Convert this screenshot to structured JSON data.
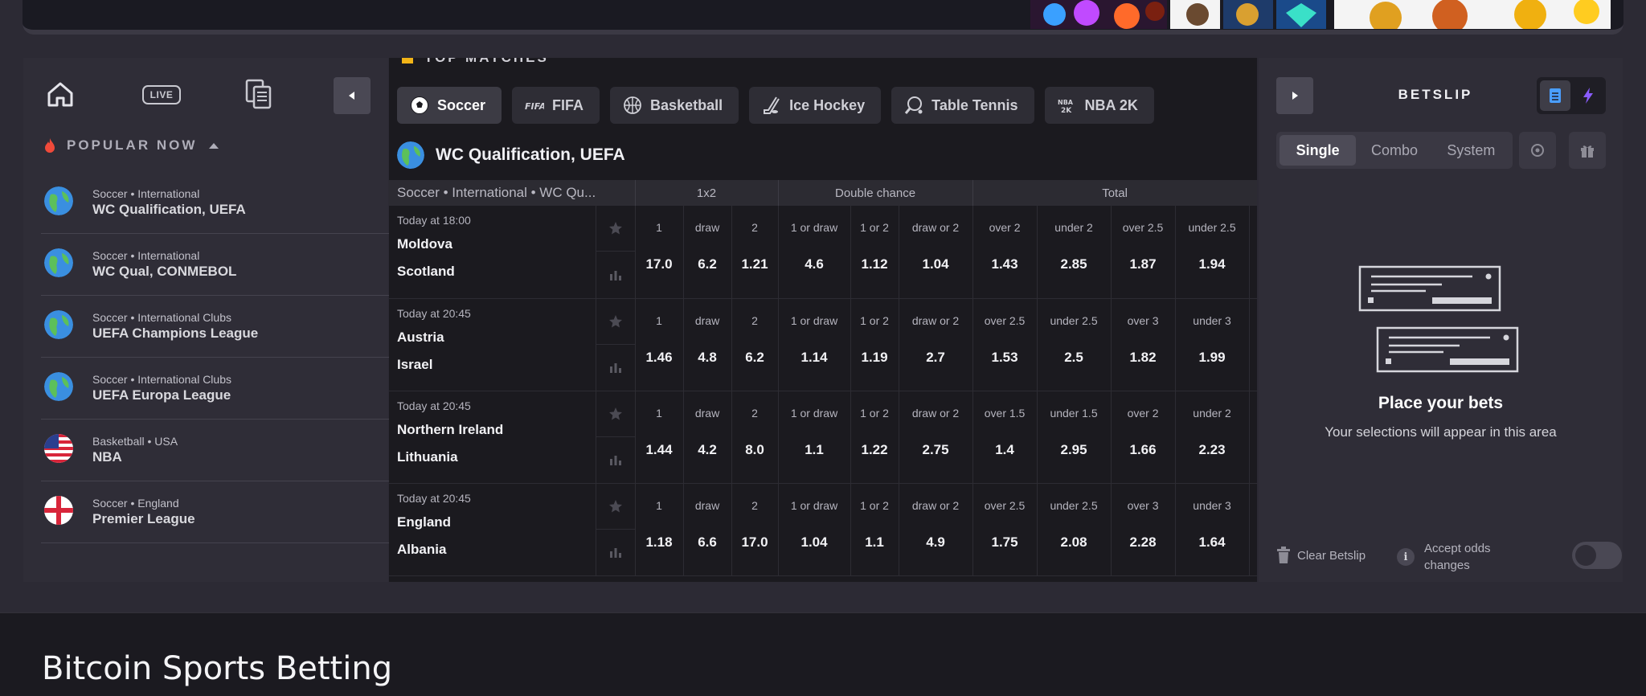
{
  "sidebar": {
    "live_label": "LIVE",
    "popular_title": "POPULAR NOW",
    "items": [
      {
        "path": "Soccer • International",
        "name": "WC Qualification, UEFA",
        "flag": "globe-icon"
      },
      {
        "path": "Soccer • International",
        "name": "WC Qual, CONMEBOL",
        "flag": "globe-icon"
      },
      {
        "path": "Soccer • International Clubs",
        "name": "UEFA Champions League",
        "flag": "globe-icon"
      },
      {
        "path": "Soccer • International Clubs",
        "name": "UEFA Europa League",
        "flag": "globe-icon"
      },
      {
        "path": "Basketball • USA",
        "name": "NBA",
        "flag": "usa-flag-icon"
      },
      {
        "path": "Soccer • England",
        "name": "Premier League",
        "flag": "england-flag-icon"
      }
    ]
  },
  "center": {
    "section_title": "TOP MATCHES",
    "tabs": [
      {
        "label": "Soccer",
        "icon": "soccer-ball-icon",
        "active": true
      },
      {
        "label": "FIFA",
        "icon": "fifa-icon",
        "active": false
      },
      {
        "label": "Basketball",
        "icon": "basketball-icon",
        "active": false
      },
      {
        "label": "Ice Hockey",
        "icon": "ice-hockey-icon",
        "active": false
      },
      {
        "label": "Table Tennis",
        "icon": "table-tennis-icon",
        "active": false
      },
      {
        "label": "NBA 2K",
        "icon": "nba2k-icon",
        "active": false
      }
    ],
    "league": "WC Qualification, UEFA",
    "table_header": {
      "breadcrumb": "Soccer • International • WC Qu...",
      "group_1x2": "1x2",
      "group_double": "Double chance",
      "group_total": "Total"
    },
    "matches": [
      {
        "time": "Today at 18:00",
        "home": "Moldova",
        "away": "Scotland",
        "odds": [
          {
            "label": "1",
            "value": "17.0"
          },
          {
            "label": "draw",
            "value": "6.2"
          },
          {
            "label": "2",
            "value": "1.21"
          },
          {
            "label": "1 or draw",
            "value": "4.6"
          },
          {
            "label": "1 or 2",
            "value": "1.12"
          },
          {
            "label": "draw or 2",
            "value": "1.04"
          },
          {
            "label": "over 2",
            "value": "1.43"
          },
          {
            "label": "under 2",
            "value": "2.85"
          },
          {
            "label": "over 2.5",
            "value": "1.87"
          },
          {
            "label": "under 2.5",
            "value": "1.94"
          }
        ]
      },
      {
        "time": "Today at 20:45",
        "home": "Austria",
        "away": "Israel",
        "odds": [
          {
            "label": "1",
            "value": "1.46"
          },
          {
            "label": "draw",
            "value": "4.8"
          },
          {
            "label": "2",
            "value": "6.2"
          },
          {
            "label": "1 or draw",
            "value": "1.14"
          },
          {
            "label": "1 or 2",
            "value": "1.19"
          },
          {
            "label": "draw or 2",
            "value": "2.7"
          },
          {
            "label": "over 2.5",
            "value": "1.53"
          },
          {
            "label": "under 2.5",
            "value": "2.5"
          },
          {
            "label": "over 3",
            "value": "1.82"
          },
          {
            "label": "under 3",
            "value": "1.99"
          }
        ]
      },
      {
        "time": "Today at 20:45",
        "home": "Northern Ireland",
        "away": "Lithuania",
        "odds": [
          {
            "label": "1",
            "value": "1.44"
          },
          {
            "label": "draw",
            "value": "4.2"
          },
          {
            "label": "2",
            "value": "8.0"
          },
          {
            "label": "1 or draw",
            "value": "1.1"
          },
          {
            "label": "1 or 2",
            "value": "1.22"
          },
          {
            "label": "draw or 2",
            "value": "2.75"
          },
          {
            "label": "over 1.5",
            "value": "1.4"
          },
          {
            "label": "under 1.5",
            "value": "2.95"
          },
          {
            "label": "over 2",
            "value": "1.66"
          },
          {
            "label": "under 2",
            "value": "2.23"
          }
        ]
      },
      {
        "time": "Today at 20:45",
        "home": "England",
        "away": "Albania",
        "odds": [
          {
            "label": "1",
            "value": "1.18"
          },
          {
            "label": "draw",
            "value": "6.6"
          },
          {
            "label": "2",
            "value": "17.0"
          },
          {
            "label": "1 or draw",
            "value": "1.04"
          },
          {
            "label": "1 or 2",
            "value": "1.1"
          },
          {
            "label": "draw or 2",
            "value": "4.9"
          },
          {
            "label": "over 2.5",
            "value": "1.75"
          },
          {
            "label": "under 2.5",
            "value": "2.08"
          },
          {
            "label": "over 3",
            "value": "2.28"
          },
          {
            "label": "under 3",
            "value": "1.64"
          }
        ]
      }
    ]
  },
  "betslip": {
    "title": "BETSLIP",
    "modes": [
      "Single",
      "Combo",
      "System"
    ],
    "active_mode": "Single",
    "empty_title": "Place your bets",
    "empty_subtitle": "Your selections will appear in this area",
    "clear_label": "Clear Betslip",
    "accept_label": "Accept odds changes",
    "accept_enabled": false
  },
  "footer": {
    "heading": "Bitcoin Sports Betting"
  },
  "colors": {
    "page_bg": "#2c2a34",
    "panel_bg": "#2f2d37",
    "table_bg": "#1b1a1f",
    "accent_blue": "#4a9eff",
    "accent_purple": "#8a5cff",
    "hot_red": "#f04a3a"
  }
}
